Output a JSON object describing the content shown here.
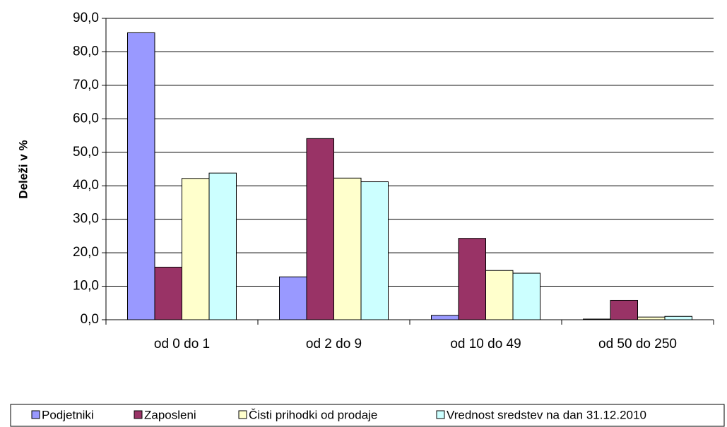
{
  "chart_data": {
    "type": "bar",
    "y_label": "Deleži v %",
    "categories": [
      "od 0 do 1",
      "od 2 do 9",
      "od 10 do 49",
      "od 50 do 250"
    ],
    "series": [
      {
        "name": "Podjetniki",
        "color": "#9999ff",
        "values": [
          85.7,
          12.8,
          1.3,
          0.2
        ]
      },
      {
        "name": "Zaposleni",
        "color": "#993366",
        "values": [
          15.7,
          54.1,
          24.3,
          5.8
        ]
      },
      {
        "name": "Čisti prihodki od prodaje",
        "color": "#ffffcc",
        "values": [
          42.2,
          42.3,
          14.7,
          0.8
        ]
      },
      {
        "name": "Vrednost sredstev na dan 31.12.2010",
        "color": "#ccffff",
        "values": [
          43.8,
          41.2,
          13.9,
          1.0
        ]
      }
    ],
    "ylim": [
      0,
      90
    ],
    "yticks": [
      {
        "value": 0,
        "label": "0,0"
      },
      {
        "value": 10,
        "label": "10,0"
      },
      {
        "value": 20,
        "label": "20,0"
      },
      {
        "value": 30,
        "label": "30,0"
      },
      {
        "value": 40,
        "label": "40,0"
      },
      {
        "value": 50,
        "label": "50,0"
      },
      {
        "value": 60,
        "label": "60,0"
      },
      {
        "value": 70,
        "label": "70,0"
      },
      {
        "value": 80,
        "label": "80,0"
      },
      {
        "value": 90,
        "label": "90,0"
      }
    ],
    "grid": true
  }
}
